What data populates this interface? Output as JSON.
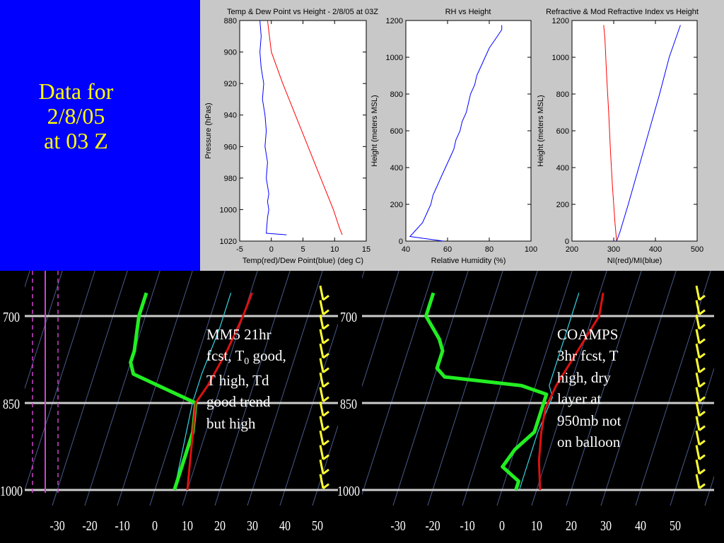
{
  "slide": {
    "title_lines": [
      "Data for",
      "2/8/05",
      "at 03 Z"
    ],
    "mm5_note_line1": "MM5 21hr",
    "mm5_note_line2_pre": "fcst, T",
    "mm5_note_line2_sub": "0",
    "mm5_note_line2_post": " good,",
    "mm5_note_line3": "T high, Td",
    "mm5_note_line4": "good trend",
    "mm5_note_line5": "but high",
    "coamps_note_lines": [
      "COAMPS",
      "3hr fcst, T",
      "high, dry",
      "layer at",
      "950mb not",
      "on balloon"
    ]
  },
  "colors": {
    "background": "#000000",
    "title_panel": "#0000ff",
    "title_text": "#ffff00",
    "plot_panel": "#c8c8c8",
    "temp_line": "#ff0000",
    "dew_line": "#0000ff",
    "skew_temp": "#dd1111",
    "skew_dew": "#22ee22",
    "skew_thin": "#33d6e6",
    "wind_barbs": "#ffff33",
    "isobar": "#cccccc",
    "isotherm": "#4a5a8a",
    "purple": "#cc44cc"
  },
  "chart_data": [
    {
      "type": "line",
      "title": "Temp & Dew Point vs Height - 2/8/05 at 03Z",
      "xlabel": "Temp(red)/Dew Point(blue) (deg C)",
      "ylabel": "Pressure (hPas)",
      "xlim": [
        -5,
        15
      ],
      "ylim": [
        1020,
        880
      ],
      "x_ticks": [
        "-5",
        "0",
        "5",
        "10",
        "15"
      ],
      "y_ticks": [
        "880",
        "900",
        "920",
        "940",
        "960",
        "980",
        "1000",
        "1020"
      ],
      "series": [
        {
          "color": "#ff0000",
          "points": [
            [
              11.2,
              1016
            ],
            [
              10.8,
              1012
            ],
            [
              9.8,
              1000
            ],
            [
              7.8,
              980
            ],
            [
              5.8,
              960
            ],
            [
              3.8,
              940
            ],
            [
              1.8,
              920
            ],
            [
              0.0,
              900
            ],
            [
              -0.6,
              880
            ]
          ]
        },
        {
          "color": "#0000ff",
          "points": [
            [
              2.4,
              1016
            ],
            [
              -0.8,
              1015
            ],
            [
              -0.6,
              1005
            ],
            [
              -0.4,
              1000
            ],
            [
              -0.6,
              995
            ],
            [
              -0.4,
              990
            ],
            [
              -0.8,
              980
            ],
            [
              -0.6,
              970
            ],
            [
              -1.0,
              960
            ],
            [
              -0.8,
              950
            ],
            [
              -1.0,
              940
            ],
            [
              -1.4,
              930
            ],
            [
              -1.2,
              920
            ],
            [
              -1.6,
              910
            ],
            [
              -1.8,
              900
            ],
            [
              -1.6,
              890
            ],
            [
              -1.8,
              880
            ]
          ]
        }
      ]
    },
    {
      "type": "line",
      "title": "RH vs Height",
      "xlabel": "Relative Humidity (%)",
      "ylabel": "Height (meters MSL)",
      "xlim": [
        40,
        100
      ],
      "ylim": [
        0,
        1200
      ],
      "x_ticks": [
        "40",
        "60",
        "80",
        "100"
      ],
      "y_ticks": [
        "0",
        "200",
        "400",
        "600",
        "800",
        "1000",
        "1200"
      ],
      "series": [
        {
          "color": "#0000ff",
          "points": [
            [
              58,
              0
            ],
            [
              42,
              25
            ],
            [
              44,
              50
            ],
            [
              48,
              100
            ],
            [
              50,
              150
            ],
            [
              52,
              200
            ],
            [
              53,
              250
            ],
            [
              55,
              300
            ],
            [
              57,
              350
            ],
            [
              59,
              400
            ],
            [
              61,
              450
            ],
            [
              63,
              500
            ],
            [
              64,
              550
            ],
            [
              66,
              600
            ],
            [
              67,
              650
            ],
            [
              69,
              700
            ],
            [
              70,
              750
            ],
            [
              71,
              800
            ],
            [
              73,
              850
            ],
            [
              74,
              900
            ],
            [
              76,
              950
            ],
            [
              78,
              1000
            ],
            [
              80,
              1050
            ],
            [
              83,
              1100
            ],
            [
              86,
              1150
            ],
            [
              86,
              1175
            ]
          ]
        }
      ]
    },
    {
      "type": "line",
      "title": "Refractive & Mod Refractive Index vs Height",
      "xlabel": "NI(red)/MI(blue)",
      "ylabel": "Height (meters MSL)",
      "xlim": [
        200,
        500
      ],
      "ylim": [
        0,
        1200
      ],
      "x_ticks": [
        "200",
        "300",
        "400",
        "500"
      ],
      "y_ticks": [
        "0",
        "200",
        "400",
        "600",
        "800",
        "1000",
        "1200"
      ],
      "series": [
        {
          "color": "#ff0000",
          "points": [
            [
              307,
              0
            ],
            [
              303,
              100
            ],
            [
              297,
              300
            ],
            [
              292,
              500
            ],
            [
              288,
              700
            ],
            [
              283,
              900
            ],
            [
              279,
              1100
            ],
            [
              276,
              1175
            ]
          ]
        },
        {
          "color": "#0000ff",
          "points": [
            [
              307,
              0
            ],
            [
              315,
              50
            ],
            [
              335,
              200
            ],
            [
              360,
              400
            ],
            [
              385,
              600
            ],
            [
              410,
              800
            ],
            [
              433,
              1000
            ],
            [
              460,
              1175
            ]
          ]
        }
      ]
    },
    {
      "type": "line",
      "title": "",
      "x_ticks": [
        "-30",
        "-20",
        "-10",
        "0",
        "10",
        "20",
        "30",
        "40",
        "50"
      ],
      "y_ticks": [
        "700",
        "850",
        "1000"
      ],
      "xlim": [
        -40,
        55
      ],
      "series": [
        {
          "color": "#dd1111",
          "points": [
            [
              10.5,
              660
            ],
            [
              10,
              700
            ],
            [
              8.5,
              760
            ],
            [
              6,
              820
            ],
            [
              4,
              850
            ],
            [
              6,
              900
            ],
            [
              8,
              950
            ],
            [
              10,
              1000
            ]
          ]
        },
        {
          "color": "#22ee22",
          "points": [
            [
              -22,
              660
            ],
            [
              -22,
              700
            ],
            [
              -20,
              760
            ],
            [
              -20,
              780
            ],
            [
              -18,
              800
            ],
            [
              4,
              850
            ],
            [
              6,
              900
            ],
            [
              6,
              960
            ],
            [
              6,
              1000
            ]
          ]
        },
        {
          "color": "#33d6e6",
          "points": [
            [
              4,
              660
            ],
            [
              4,
              720
            ],
            [
              3,
              800
            ],
            [
              3,
              850
            ],
            [
              4,
              900
            ],
            [
              6,
              1000
            ]
          ]
        }
      ]
    },
    {
      "type": "line",
      "title": "",
      "x_ticks": [
        "-30",
        "-20",
        "-10",
        "0",
        "10",
        "20",
        "30",
        "40",
        "50"
      ],
      "y_ticks": [
        "700",
        "850",
        "1000"
      ],
      "xlim": [
        -40,
        55
      ],
      "series": [
        {
          "color": "#dd1111",
          "points": [
            [
              11,
              660
            ],
            [
              12,
              700
            ],
            [
              9,
              760
            ],
            [
              6,
              820
            ],
            [
              5,
              860
            ],
            [
              6,
              900
            ],
            [
              8,
              950
            ],
            [
              11,
              1000
            ]
          ]
        },
        {
          "color": "#22ee22",
          "points": [
            [
              -38,
              660
            ],
            [
              -38,
              700
            ],
            [
              -32,
              740
            ],
            [
              -30,
              760
            ],
            [
              -30,
              790
            ],
            [
              -27,
              805
            ],
            [
              -4,
              820
            ],
            [
              4,
              835
            ],
            [
              4,
              900
            ],
            [
              0,
              930
            ],
            [
              -2,
              960
            ],
            [
              4,
              985
            ],
            [
              4,
              1000
            ]
          ]
        },
        {
          "color": "#33d6e6",
          "points": [
            [
              4,
              660
            ],
            [
              4,
              720
            ],
            [
              4,
              820
            ],
            [
              6,
              840
            ],
            [
              5,
              900
            ],
            [
              5,
              950
            ],
            [
              5,
              1000
            ]
          ]
        }
      ]
    }
  ]
}
